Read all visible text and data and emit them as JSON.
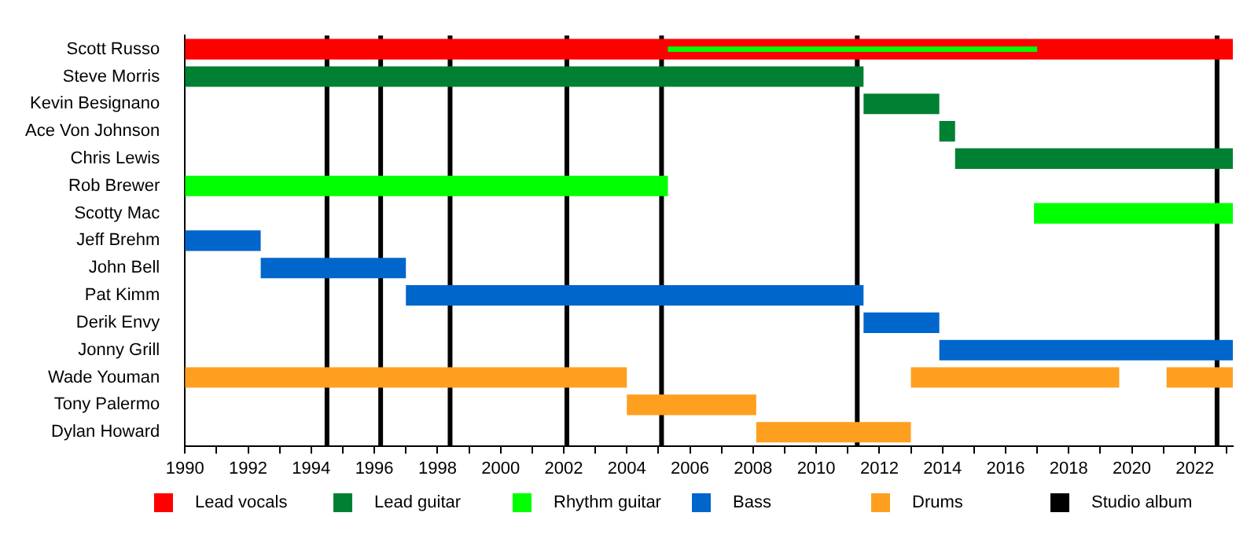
{
  "chart_data": {
    "type": "bar",
    "orientation": "horizontal",
    "categories": [
      "Scott Russo",
      "Steve Morris",
      "Kevin Besignano",
      "Ace Von Johnson",
      "Chris Lewis",
      "Rob Brewer",
      "Scotty Mac",
      "Jeff Brehm",
      "John Bell",
      "Pat Kimm",
      "Derik Envy",
      "Jonny Grill",
      "Wade Youman",
      "Tony Palermo",
      "Dylan Howard"
    ],
    "series": [
      {
        "name": "Lead vocals",
        "color": "#ff0000",
        "base": [
          1990,
          null,
          null,
          null,
          null,
          null,
          null,
          null,
          null,
          null,
          null,
          null,
          null,
          null,
          null
        ],
        "values": [
          33.2,
          null,
          null,
          null,
          null,
          null,
          null,
          null,
          null,
          null,
          null,
          null,
          null,
          null,
          null
        ]
      },
      {
        "name": "Lead guitar",
        "color": "#008033",
        "base": [
          null,
          1990,
          2011.5,
          2013.9,
          2014.4,
          null,
          null,
          null,
          null,
          null,
          null,
          null,
          null,
          null,
          null
        ],
        "values": [
          null,
          21.5,
          2.4,
          0.5,
          8.8,
          null,
          null,
          null,
          null,
          null,
          null,
          null,
          null,
          null,
          null
        ]
      },
      {
        "name": "Rhythm guitar",
        "color": "#00ff00",
        "base": [
          null,
          null,
          null,
          null,
          null,
          1990,
          2016.9,
          null,
          null,
          null,
          null,
          null,
          null,
          null,
          null
        ],
        "values": [
          null,
          null,
          null,
          null,
          null,
          15.3,
          6.3,
          null,
          null,
          null,
          null,
          null,
          null,
          null,
          null
        ]
      },
      {
        "color": "#00ff00",
        "base": [
          2005.3,
          null,
          null,
          null,
          null,
          null,
          null,
          null,
          null,
          null,
          null,
          null,
          null,
          null,
          null
        ],
        "values": [
          11.7,
          null,
          null,
          null,
          null,
          null,
          null,
          null,
          null,
          null,
          null,
          null,
          null,
          null,
          null
        ]
      },
      {
        "name": "Bass",
        "color": "#0066cc",
        "base": [
          null,
          null,
          null,
          null,
          null,
          null,
          null,
          1990,
          1992.4,
          1997,
          2011.5,
          2013.9,
          null,
          null,
          null
        ],
        "values": [
          null,
          null,
          null,
          null,
          null,
          null,
          null,
          2.4,
          4.6,
          14.5,
          2.4,
          9.3,
          null,
          null,
          null
        ]
      },
      {
        "name": "Drums",
        "color": "#ff9f1f",
        "base": [
          null,
          null,
          null,
          null,
          null,
          null,
          null,
          null,
          null,
          null,
          null,
          null,
          1990,
          2004,
          2008.1
        ],
        "values": [
          null,
          null,
          null,
          null,
          null,
          null,
          null,
          null,
          null,
          null,
          null,
          null,
          14,
          4.1,
          4.9
        ]
      },
      {
        "color": "#ff9f1f",
        "base": [
          null,
          null,
          null,
          null,
          null,
          null,
          null,
          null,
          null,
          null,
          null,
          null,
          2013,
          null,
          null
        ],
        "values": [
          null,
          null,
          null,
          null,
          null,
          null,
          null,
          null,
          null,
          null,
          null,
          null,
          6.6,
          null,
          null
        ]
      },
      {
        "color": "#ff9f1f",
        "base": [
          null,
          null,
          null,
          null,
          null,
          null,
          null,
          null,
          null,
          null,
          null,
          null,
          2021.1,
          null,
          null
        ],
        "values": [
          null,
          null,
          null,
          null,
          null,
          null,
          null,
          null,
          null,
          null,
          null,
          null,
          2.1,
          null,
          null
        ]
      }
    ],
    "ref_lines": [
      {
        "axis": "x",
        "value": 1994.5,
        "label": "Studio album",
        "color": "#000000"
      },
      {
        "axis": "x",
        "value": 1996.2,
        "color": "#000000"
      },
      {
        "axis": "x",
        "value": 1998.4,
        "color": "#000000"
      },
      {
        "axis": "x",
        "value": 2002.1,
        "color": "#000000"
      },
      {
        "axis": "x",
        "value": 2005.1,
        "color": "#000000"
      },
      {
        "axis": "x",
        "value": 2011.3,
        "color": "#000000"
      },
      {
        "axis": "x",
        "value": 2022.7,
        "color": "#000000"
      }
    ],
    "xlim": [
      1990,
      2023.2
    ],
    "xticks": [
      1990,
      {
        "value": 1991,
        "label": null
      },
      1992,
      {
        "value": 1993,
        "label": null
      },
      1994,
      {
        "value": 1995,
        "label": null
      },
      1996,
      {
        "value": 1997,
        "label": null
      },
      1998,
      {
        "value": 1999,
        "label": null
      },
      2000,
      {
        "value": 2001,
        "label": null
      },
      2002,
      {
        "value": 2003,
        "label": null
      },
      2004,
      {
        "value": 2005,
        "label": null
      },
      2006,
      {
        "value": 2007,
        "label": null
      },
      2008,
      {
        "value": 2009,
        "label": null
      },
      2010,
      {
        "value": 2011,
        "label": null
      },
      2012,
      {
        "value": 2013,
        "label": null
      },
      2014,
      {
        "value": 2015,
        "label": null
      },
      2016,
      {
        "value": 2017,
        "label": null
      },
      2018,
      {
        "value": 2019,
        "label": null
      },
      2020,
      {
        "value": 2021,
        "label": null
      },
      2022,
      {
        "value": 2023,
        "label": null
      }
    ],
    "grid": false,
    "legend": "bottom"
  }
}
